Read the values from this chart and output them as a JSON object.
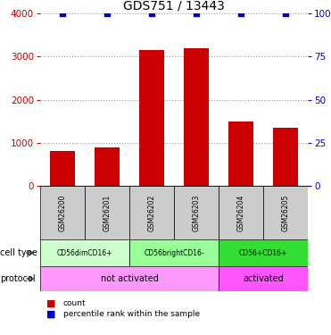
{
  "title": "GDS751 / 13443",
  "samples": [
    "GSM26200",
    "GSM26201",
    "GSM26202",
    "GSM26203",
    "GSM26204",
    "GSM26205"
  ],
  "counts": [
    800,
    900,
    3150,
    3200,
    1500,
    1350
  ],
  "percentiles": [
    100,
    100,
    100,
    100,
    100,
    100
  ],
  "ylim_left": [
    0,
    4000
  ],
  "ylim_right": [
    0,
    100
  ],
  "yticks_left": [
    0,
    1000,
    2000,
    3000,
    4000
  ],
  "yticks_right": [
    0,
    25,
    50,
    75,
    100
  ],
  "ytick_right_labels": [
    "0",
    "25",
    "50",
    "75",
    "100%"
  ],
  "bar_color": "#cc0000",
  "dot_color": "#0000cc",
  "cell_types": [
    {
      "label": "CD56dimCD16+",
      "start": 0,
      "end": 2,
      "color": "#ccffcc"
    },
    {
      "label": "CD56brightCD16-",
      "start": 2,
      "end": 4,
      "color": "#99ff99"
    },
    {
      "label": "CD56+CD16+",
      "start": 4,
      "end": 6,
      "color": "#33dd33"
    }
  ],
  "protocols": [
    {
      "label": "not activated",
      "start": 0,
      "end": 4,
      "color": "#ff99ff"
    },
    {
      "label": "activated",
      "start": 4,
      "end": 6,
      "color": "#ff55ff"
    }
  ],
  "sample_box_color": "#cccccc",
  "left_axis_color": "#cc0000",
  "right_axis_color": "#0000cc",
  "bg_color": "#ffffff",
  "grid_color": "#999999"
}
